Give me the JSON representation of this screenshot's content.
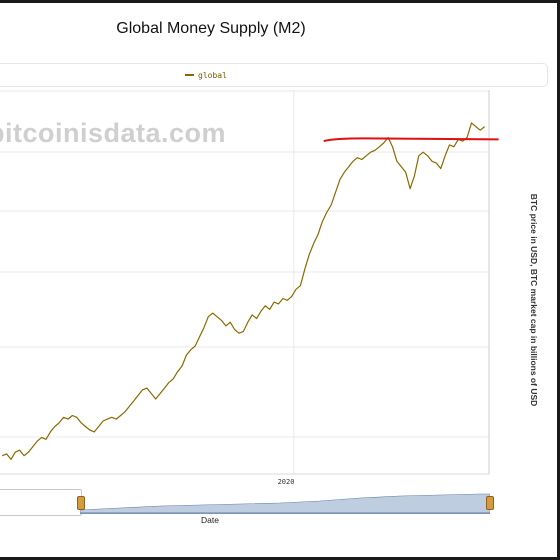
{
  "title": "Global Money Supply (M2)",
  "watermark": "bitcoinisdata.com",
  "legend": {
    "label": "global",
    "color": "#8a6a00"
  },
  "y2_label": "BTC price in USD, BTC market cap in billions of USD",
  "x_axis_label": "Date",
  "x_tick_label": "2020",
  "annotation_line_color": "#e01010",
  "chart_data": {
    "type": "line",
    "title": "Global Money Supply (M2)",
    "xlabel": "Date",
    "ylabel": "",
    "y2label": "BTC price in USD, BTC market cap in billions of USD",
    "x_ticks": [
      "2020"
    ],
    "series": [
      {
        "name": "global",
        "color": "#8a6a00",
        "x": [
          2013.35,
          2013.45,
          2013.55,
          2013.65,
          2013.75,
          2013.85,
          2013.95,
          2014.05,
          2014.15,
          2014.25,
          2014.35,
          2014.45,
          2014.55,
          2014.65,
          2014.75,
          2014.85,
          2014.95,
          2015.05,
          2015.15,
          2015.25,
          2015.35,
          2015.45,
          2015.55,
          2015.65,
          2015.75,
          2015.85,
          2015.95,
          2016.05,
          2016.15,
          2016.25,
          2016.35,
          2016.45,
          2016.55,
          2016.65,
          2016.75,
          2016.85,
          2016.95,
          2017.05,
          2017.15,
          2017.25,
          2017.35,
          2017.45,
          2017.55,
          2017.65,
          2017.75,
          2017.85,
          2017.95,
          2018.05,
          2018.15,
          2018.25,
          2018.35,
          2018.45,
          2018.55,
          2018.65,
          2018.75,
          2018.85,
          2018.95,
          2019.05,
          2019.15,
          2019.25,
          2019.35,
          2019.45,
          2019.55,
          2019.65,
          2019.75,
          2019.85,
          2019.95,
          2020.05,
          2020.15,
          2020.25,
          2020.35,
          2020.45,
          2020.55,
          2020.65,
          2020.75,
          2020.85,
          2020.95,
          2021.05,
          2021.15,
          2021.25,
          2021.35,
          2021.45,
          2021.55,
          2021.65,
          2021.75,
          2021.85,
          2021.95,
          2022.05,
          2022.15,
          2022.25,
          2022.35,
          2022.45,
          2022.55,
          2022.65,
          2022.75,
          2022.85,
          2022.95,
          2023.05,
          2023.15,
          2023.25,
          2023.35,
          2023.45,
          2023.55,
          2023.65,
          2023.75,
          2023.85,
          2023.95,
          2024.05,
          2024.15,
          2024.25,
          2024.35
        ],
        "y": [
          68.5,
          68.6,
          68.3,
          68.7,
          68.8,
          68.5,
          68.7,
          69.0,
          69.3,
          69.5,
          69.4,
          69.8,
          70.1,
          70.3,
          70.6,
          70.5,
          70.7,
          70.6,
          70.3,
          70.1,
          69.9,
          69.8,
          70.1,
          70.4,
          70.5,
          70.6,
          70.5,
          70.7,
          70.9,
          71.2,
          71.5,
          71.8,
          72.1,
          72.2,
          71.9,
          71.6,
          71.9,
          72.2,
          72.5,
          72.7,
          73.1,
          73.4,
          74.0,
          74.3,
          74.5,
          75.0,
          75.5,
          76.1,
          76.3,
          76.1,
          75.9,
          75.6,
          75.8,
          75.4,
          75.2,
          75.3,
          75.8,
          76.2,
          76.0,
          76.4,
          76.7,
          76.5,
          76.9,
          76.8,
          77.1,
          77.0,
          77.2,
          77.6,
          77.8,
          78.7,
          79.5,
          80.1,
          80.6,
          81.3,
          81.8,
          82.2,
          82.9,
          83.6,
          84.0,
          84.3,
          84.6,
          84.8,
          84.7,
          84.9,
          85.1,
          85.2,
          85.4,
          85.6,
          85.9,
          85.4,
          84.6,
          84.3,
          84.0,
          83.1,
          83.8,
          84.9,
          85.1,
          84.9,
          84.6,
          84.5,
          84.2,
          84.9,
          85.5,
          85.4,
          85.8,
          85.7,
          85.9,
          86.7,
          86.5,
          86.3,
          86.5
        ]
      }
    ],
    "annotations": [
      {
        "type": "hline",
        "y": 85.8,
        "x_start": 2020.7,
        "x_end": 2024.65,
        "color": "#e01010"
      }
    ],
    "ylim": [
      67.5,
      88.5
    ],
    "xlim": [
      2013.3,
      2024.45
    ],
    "grid": true,
    "legend_position": "top"
  }
}
